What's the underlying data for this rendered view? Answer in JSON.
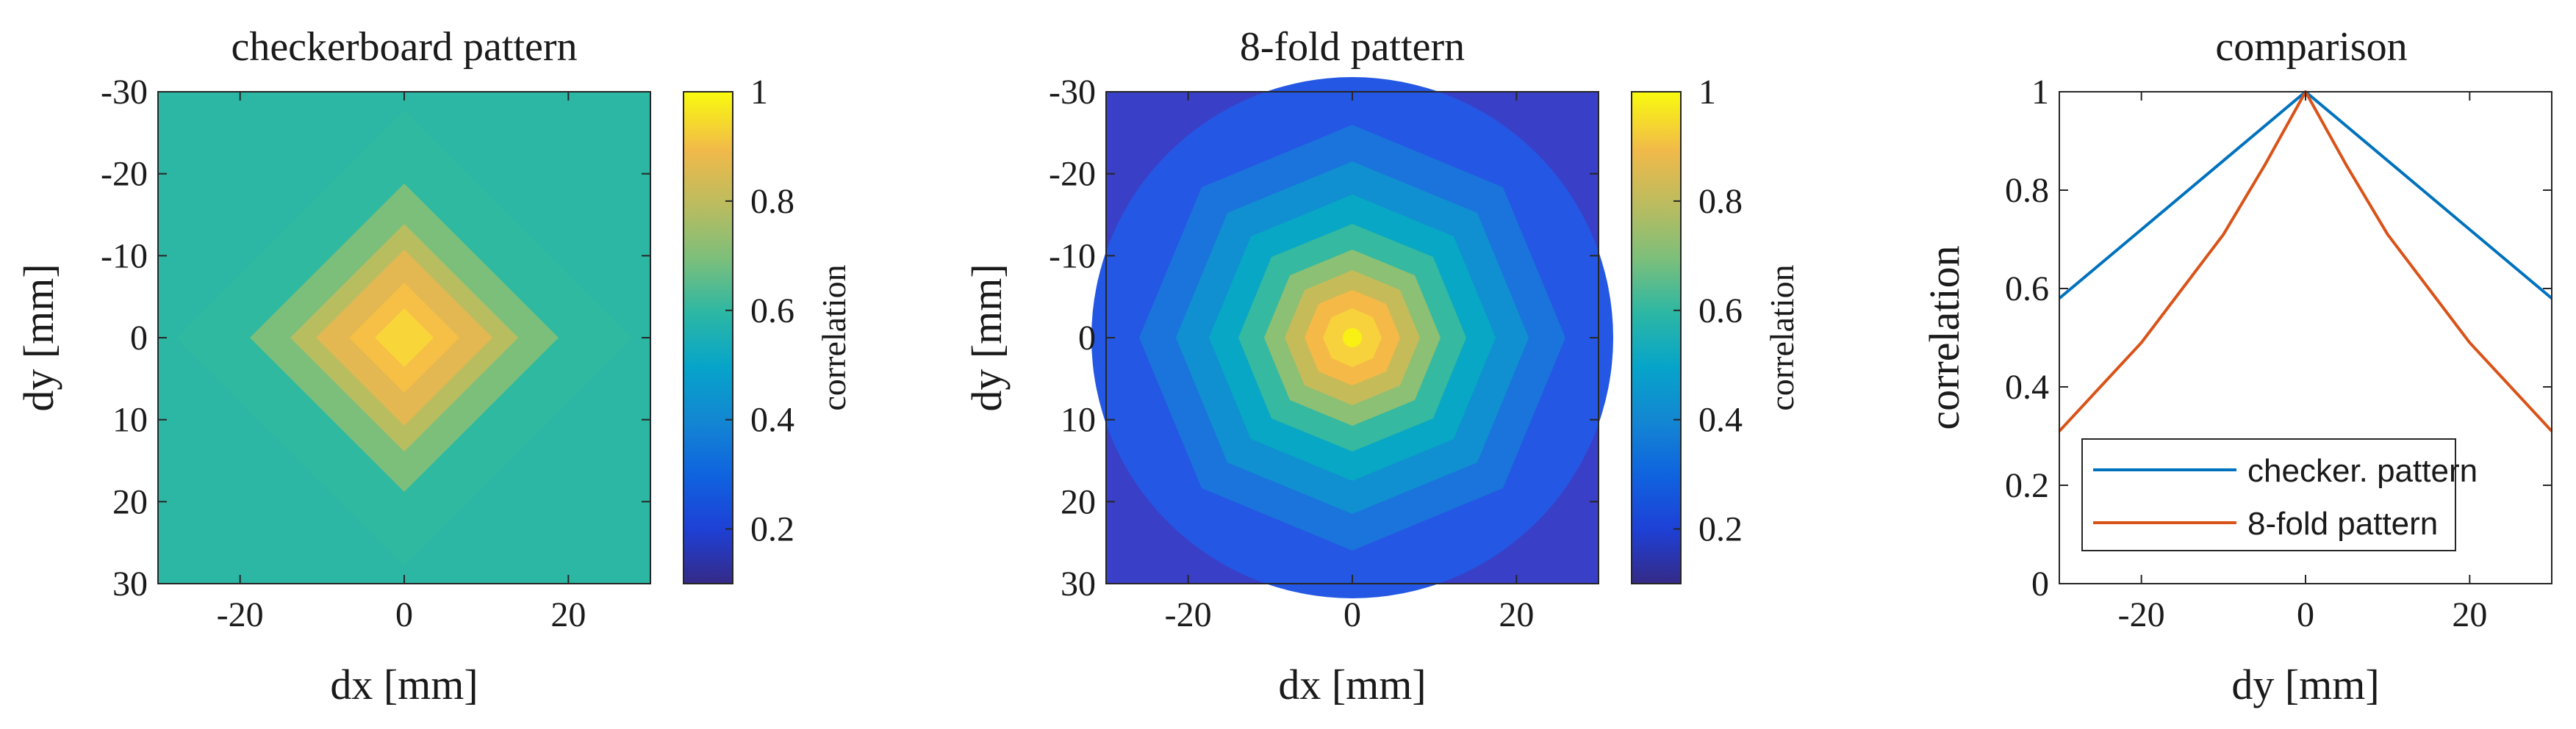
{
  "chart_data": [
    {
      "type": "heatmap",
      "title": "checkerboard pattern",
      "xlabel": "dx [mm]",
      "ylabel": "dy [mm]",
      "xlim": [
        -30,
        30
      ],
      "ylim": [
        -30,
        30
      ],
      "y_direction": "reversed (top = -30)",
      "xticks": [
        -20,
        0,
        20
      ],
      "yticks": [
        -30,
        -20,
        -10,
        0,
        10,
        20,
        30
      ],
      "pattern": "diamond",
      "center_value": 0.95,
      "edge_value_axis": 0.6,
      "corner_value": 0.55,
      "colorbar": {
        "label": "correlation",
        "range": [
          0.1,
          1
        ],
        "ticks": [
          0.2,
          0.4,
          0.6,
          0.8,
          1
        ]
      }
    },
    {
      "type": "heatmap",
      "title": "8-fold pattern",
      "xlabel": "dx [mm]",
      "ylabel": "dy [mm]",
      "xlim": [
        -30,
        30
      ],
      "ylim": [
        -30,
        30
      ],
      "y_direction": "reversed (top = -30)",
      "xticks": [
        -20,
        0,
        20
      ],
      "yticks": [
        -30,
        -20,
        -10,
        0,
        10,
        20,
        30
      ],
      "pattern": "octagon",
      "center_value": 1.0,
      "edge_value_axis": 0.3,
      "corner_value": 0.15,
      "colorbar": {
        "label": "correlation",
        "range": [
          0.1,
          1
        ],
        "ticks": [
          0.2,
          0.4,
          0.6,
          0.8,
          1
        ]
      }
    },
    {
      "type": "line",
      "title": "comparison",
      "xlabel": "dy [mm]",
      "ylabel": "correlation",
      "xlim": [
        -30,
        30
      ],
      "ylim": [
        0,
        1
      ],
      "xticks": [
        -20,
        0,
        20
      ],
      "yticks": [
        0,
        0.2,
        0.4,
        0.6,
        0.8,
        1
      ],
      "legend_position": "bottom",
      "series": [
        {
          "name": "checker. pattern",
          "color": "#0072BD",
          "x": [
            -30,
            -20,
            -10,
            0,
            10,
            20,
            30
          ],
          "y": [
            0.58,
            0.72,
            0.86,
            1.0,
            0.86,
            0.72,
            0.58
          ]
        },
        {
          "name": "8-fold pattern",
          "color": "#D95319",
          "x": [
            -30,
            -25,
            -20,
            -15,
            -10,
            -5,
            0,
            5,
            10,
            15,
            20,
            25,
            30
          ],
          "y": [
            0.31,
            0.4,
            0.49,
            0.6,
            0.71,
            0.85,
            1.0,
            0.85,
            0.71,
            0.6,
            0.49,
            0.4,
            0.31
          ]
        }
      ]
    }
  ]
}
